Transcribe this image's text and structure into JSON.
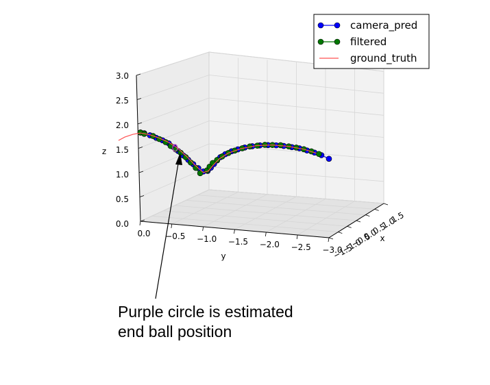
{
  "chart_data": {
    "type": "line",
    "projection": "3d",
    "xlabel": "x",
    "ylabel": "y",
    "zlabel": "z",
    "x_ticks": [
      "−1.5",
      "−1.0",
      "−0.5",
      "0.0",
      "0.5",
      "1.0",
      "1.5"
    ],
    "y_ticks": [
      "0.0",
      "−0.5",
      "−1.0",
      "−1.5",
      "−2.0",
      "−2.5",
      "−3.0"
    ],
    "z_ticks": [
      "0.0",
      "0.5",
      "1.0",
      "1.5",
      "2.0",
      "2.5",
      "3.0"
    ],
    "xlim": [
      -1.5,
      1.5
    ],
    "ylim": [
      0.0,
      -3.0
    ],
    "zlim": [
      0.0,
      3.0
    ],
    "grid": true,
    "legend_position": "top-right",
    "series": [
      {
        "name": "camera_pred",
        "color": "#0000ff",
        "marker": "circle",
        "points": [
          {
            "y": 0.0,
            "z": 1.8
          },
          {
            "y": -0.06,
            "z": 1.79
          },
          {
            "y": -0.15,
            "z": 1.76
          },
          {
            "y": -0.25,
            "z": 1.72
          },
          {
            "y": -0.35,
            "z": 1.68
          },
          {
            "y": -0.45,
            "z": 1.63
          },
          {
            "y": -0.53,
            "z": 1.56
          },
          {
            "y": -0.6,
            "z": 1.49
          },
          {
            "y": -0.68,
            "z": 1.41
          },
          {
            "y": -0.76,
            "z": 1.33
          },
          {
            "y": -0.84,
            "z": 1.25
          },
          {
            "y": -0.92,
            "z": 1.18
          },
          {
            "y": -1.0,
            "z": 1.12
          },
          {
            "y": -1.07,
            "z": 1.14
          },
          {
            "y": -1.12,
            "z": 1.21
          },
          {
            "y": -1.17,
            "z": 1.29
          },
          {
            "y": -1.22,
            "z": 1.37
          },
          {
            "y": -1.27,
            "z": 1.44
          },
          {
            "y": -1.35,
            "z": 1.51
          },
          {
            "y": -1.45,
            "z": 1.58
          },
          {
            "y": -1.55,
            "z": 1.63
          },
          {
            "y": -1.66,
            "z": 1.68
          },
          {
            "y": -1.78,
            "z": 1.72
          },
          {
            "y": -1.9,
            "z": 1.75
          },
          {
            "y": -2.03,
            "z": 1.77
          },
          {
            "y": -2.16,
            "z": 1.78
          },
          {
            "y": -2.28,
            "z": 1.78
          },
          {
            "y": -2.41,
            "z": 1.77
          },
          {
            "y": -2.53,
            "z": 1.76
          },
          {
            "y": -2.65,
            "z": 1.73
          },
          {
            "y": -2.77,
            "z": 1.7
          },
          {
            "y": -2.88,
            "z": 1.66
          },
          {
            "y": -3.0,
            "z": 1.6
          }
        ]
      },
      {
        "name": "filtered",
        "color": "#007700",
        "marker": "circle",
        "points": [
          {
            "y": 0.0,
            "z": 1.8
          },
          {
            "y": -0.06,
            "z": 1.78
          },
          {
            "y": -0.2,
            "z": 1.75
          },
          {
            "y": -0.3,
            "z": 1.7
          },
          {
            "y": -0.4,
            "z": 1.65
          },
          {
            "y": -0.48,
            "z": 1.58
          },
          {
            "y": -0.56,
            "z": 1.52
          },
          {
            "y": -0.64,
            "z": 1.46
          },
          {
            "y": -0.72,
            "z": 1.38
          },
          {
            "y": -0.8,
            "z": 1.28
          },
          {
            "y": -0.88,
            "z": 1.18
          },
          {
            "y": -0.95,
            "z": 1.08
          },
          {
            "y": -1.06,
            "z": 1.15
          },
          {
            "y": -1.1,
            "z": 1.23
          },
          {
            "y": -1.15,
            "z": 1.31
          },
          {
            "y": -1.22,
            "z": 1.38
          },
          {
            "y": -1.3,
            "z": 1.46
          },
          {
            "y": -1.4,
            "z": 1.54
          },
          {
            "y": -1.5,
            "z": 1.6
          },
          {
            "y": -1.62,
            "z": 1.66
          },
          {
            "y": -1.74,
            "z": 1.71
          },
          {
            "y": -1.86,
            "z": 1.74
          },
          {
            "y": -1.98,
            "z": 1.77
          },
          {
            "y": -2.1,
            "z": 1.78
          },
          {
            "y": -2.23,
            "z": 1.79
          },
          {
            "y": -2.36,
            "z": 1.78
          },
          {
            "y": -2.48,
            "z": 1.77
          },
          {
            "y": -2.6,
            "z": 1.75
          },
          {
            "y": -2.72,
            "z": 1.72
          },
          {
            "y": -2.84,
            "z": 1.68
          }
        ]
      },
      {
        "name": "ground_truth",
        "color": "#ff5050",
        "marker": "none",
        "points": [
          {
            "y": 0.35,
            "z": 1.6
          },
          {
            "y": 0.25,
            "z": 1.68
          },
          {
            "y": 0.12,
            "z": 1.75
          },
          {
            "y": 0.0,
            "z": 1.79
          },
          {
            "y": -0.15,
            "z": 1.77
          },
          {
            "y": -0.3,
            "z": 1.72
          },
          {
            "y": -0.45,
            "z": 1.65
          },
          {
            "y": -0.6,
            "z": 1.54
          },
          {
            "y": -0.75,
            "z": 1.38
          },
          {
            "y": -0.88,
            "z": 1.22
          },
          {
            "y": -1.0,
            "z": 1.1
          },
          {
            "y": -1.08,
            "z": 1.14
          },
          {
            "y": -1.16,
            "z": 1.27
          },
          {
            "y": -1.25,
            "z": 1.4
          },
          {
            "y": -1.4,
            "z": 1.54
          },
          {
            "y": -1.6,
            "z": 1.65
          },
          {
            "y": -1.85,
            "z": 1.74
          },
          {
            "y": -2.1,
            "z": 1.78
          },
          {
            "y": -2.35,
            "z": 1.78
          },
          {
            "y": -2.6,
            "z": 1.75
          },
          {
            "y": -2.8,
            "z": 1.69
          }
        ]
      }
    ],
    "estimated_end_ball": {
      "y": -0.55,
      "z": 1.55,
      "color": "#cc44cc"
    }
  },
  "annotation": {
    "line1": "Purple circle is estimated",
    "line2": "end ball position"
  }
}
